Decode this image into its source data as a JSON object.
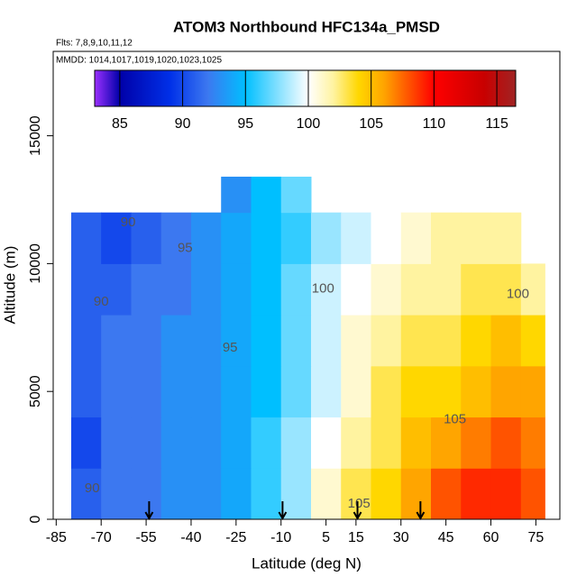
{
  "chart_data": {
    "type": "heatmap",
    "title": "ATOM3 Northbound HFC134a_PMSD",
    "subtitle": "Flts: 7,8,9,10,11,12",
    "annotation": "MMDD: 1014,1017,1019,1020,1023,1025",
    "x_label": "Latitude (deg N)",
    "y_label": "Altitude (m)",
    "xlim": [
      -86,
      83
    ],
    "ylim": [
      0,
      18300
    ],
    "xticks": [
      -85,
      -70,
      -55,
      -40,
      -25,
      -10,
      5,
      15,
      30,
      45,
      60,
      75
    ],
    "yticks": [
      0,
      5000,
      10000,
      15000
    ],
    "lat_edges": [
      -80,
      -70,
      -60,
      -50,
      -40,
      -30,
      -20,
      -10,
      0,
      10,
      20,
      30,
      40,
      50,
      60,
      70,
      78
    ],
    "alt_edges": [
      0,
      2000,
      4000,
      6000,
      8000,
      10000,
      12000,
      13400
    ],
    "values": [
      [
        91,
        92,
        92,
        93,
        93,
        94,
        96,
        98,
        101,
        103,
        104,
        106,
        108,
        109,
        109,
        108
      ],
      [
        90,
        92,
        92,
        93,
        93,
        94,
        96,
        98,
        100,
        102,
        103,
        105,
        106,
        107,
        108,
        107
      ],
      [
        91,
        92,
        92,
        93,
        93,
        94,
        95,
        97,
        99,
        101,
        103,
        104,
        104,
        105,
        106,
        106
      ],
      [
        91,
        92,
        92,
        93,
        93,
        94,
        95,
        97,
        99,
        101,
        102,
        103,
        103,
        104,
        105,
        104
      ],
      [
        91,
        91,
        92,
        92,
        93,
        94,
        95,
        97,
        99,
        100,
        101,
        102,
        102,
        103,
        103,
        102
      ],
      [
        91,
        90,
        91,
        92,
        93,
        94,
        95,
        96,
        98,
        99,
        100,
        101,
        102,
        102,
        102,
        null
      ],
      [
        null,
        null,
        null,
        null,
        null,
        93,
        95,
        97,
        null,
        null,
        null,
        null,
        null,
        null,
        null,
        null
      ]
    ],
    "colorbar_lim": [
      83,
      116.5
    ],
    "colorbar_ticks": [
      85,
      90,
      95,
      100,
      105,
      110,
      115
    ],
    "colorscale": [
      [
        83,
        "#9b30ff"
      ],
      [
        85,
        "#0000a8"
      ],
      [
        89,
        "#0030e8"
      ],
      [
        92,
        "#3c78f0"
      ],
      [
        95,
        "#00bfff"
      ],
      [
        100,
        "#ffffff"
      ],
      [
        102,
        "#fff3a0"
      ],
      [
        104,
        "#ffd700"
      ],
      [
        106,
        "#ffa500"
      ],
      [
        110,
        "#ff0000"
      ],
      [
        114,
        "#c80000"
      ],
      [
        116.5,
        "#a02424"
      ]
    ],
    "contour_labels": [
      {
        "text": "90",
        "lat": -61,
        "alt": 11600
      },
      {
        "text": "95",
        "lat": -42,
        "alt": 10600
      },
      {
        "text": "90",
        "lat": -70,
        "alt": 8500
      },
      {
        "text": "95",
        "lat": -27,
        "alt": 6700
      },
      {
        "text": "100",
        "lat": 4,
        "alt": 9000
      },
      {
        "text": "100",
        "lat": 69,
        "alt": 8800
      },
      {
        "text": "105",
        "lat": 48,
        "alt": 3900
      },
      {
        "text": "105",
        "lat": 16,
        "alt": 600
      },
      {
        "text": "90",
        "lat": -73,
        "alt": 1200
      }
    ],
    "arrows_lat": [
      -54,
      -9.5,
      15.5,
      36.5
    ]
  }
}
